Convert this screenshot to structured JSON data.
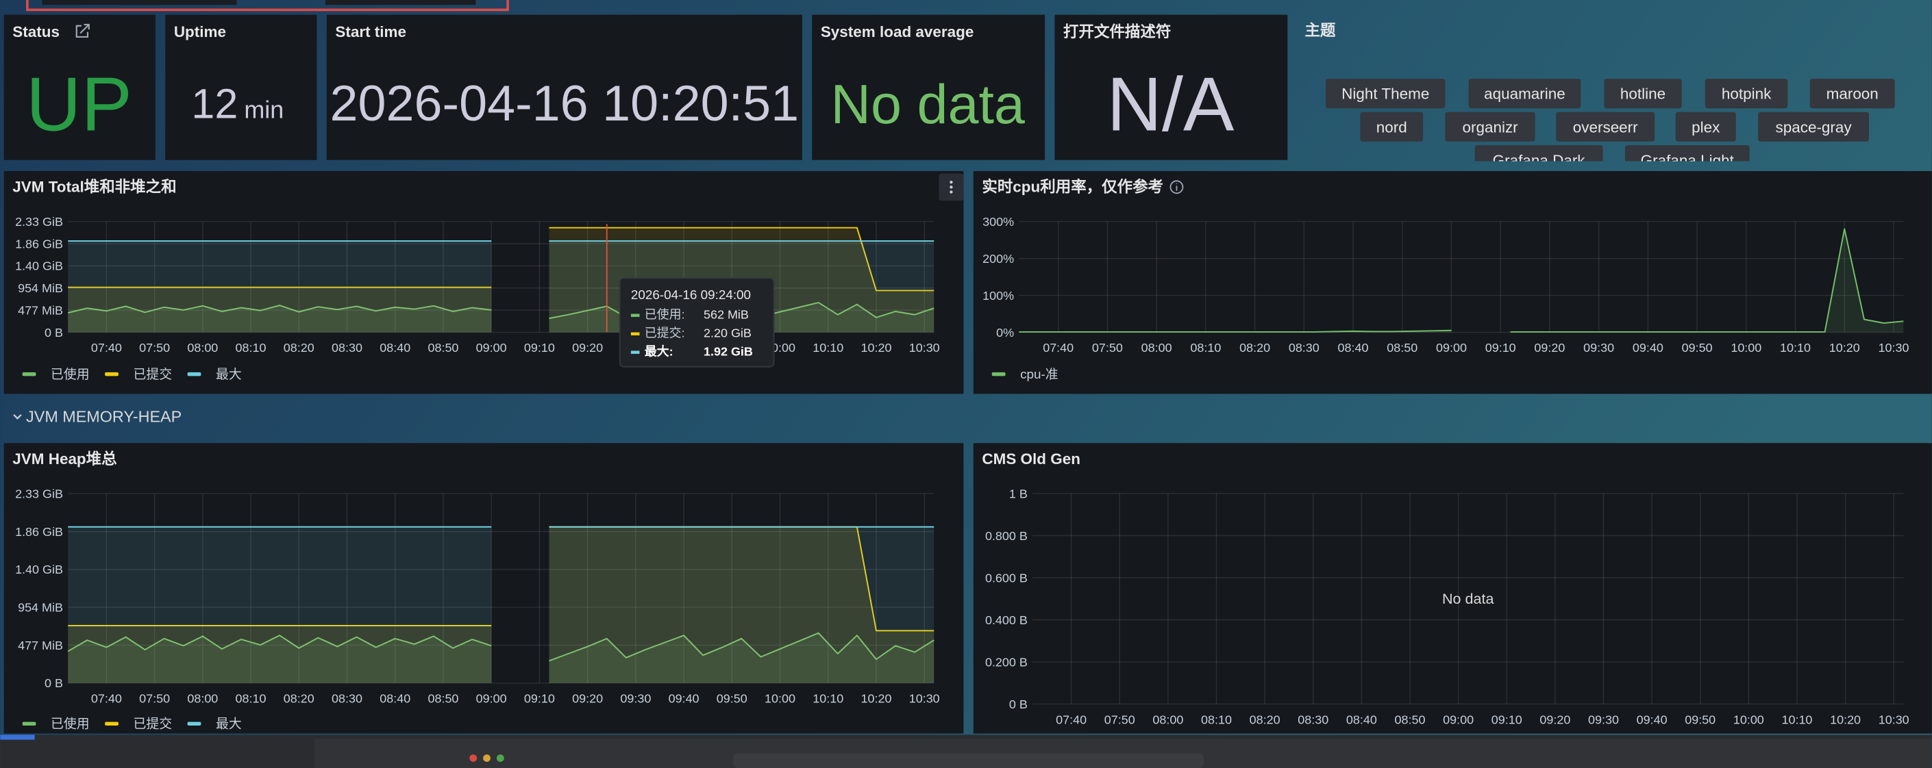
{
  "stats": [
    {
      "title": "Status",
      "value": "UP"
    },
    {
      "title": "Uptime",
      "value": 12,
      "unit": "min"
    },
    {
      "title": "Start time",
      "value": "2026-04-16 10:20:51"
    },
    {
      "title": "System load average",
      "value": "No data"
    },
    {
      "title": "打开文件描述符",
      "value": "N/A"
    }
  ],
  "theme_panel": {
    "title": "主题",
    "options": [
      "Night Theme",
      "aquamarine",
      "hotline",
      "hotpink",
      "maroon",
      "nord",
      "organizr",
      "overseerr",
      "plex",
      "space-gray",
      "Grafana Dark",
      "Grafana Light"
    ]
  },
  "row_title": "JVM MEMORY-HEAP",
  "chart_data": [
    {
      "type": "line",
      "title": "JVM Total堆和非堆之和",
      "x": [
        "07:32",
        "07:36",
        "07:40",
        "07:44",
        "07:48",
        "07:52",
        "07:56",
        "08:00",
        "08:04",
        "08:08",
        "08:12",
        "08:16",
        "08:20",
        "08:24",
        "08:28",
        "08:32",
        "08:36",
        "08:40",
        "08:44",
        "08:48",
        "08:52",
        "08:56",
        "09:00",
        "09:04",
        "09:08",
        "09:12",
        "09:16",
        "09:20",
        "09:24",
        "09:28",
        "09:32",
        "09:36",
        "09:40",
        "09:44",
        "09:48",
        "09:52",
        "09:56",
        "10:00",
        "10:04",
        "10:08",
        "10:12",
        "10:16",
        "10:20",
        "10:24",
        "10:28",
        "10:32"
      ],
      "xlim": [
        "07:32",
        "10:32"
      ],
      "xticks": [
        "07:40",
        "07:50",
        "08:00",
        "08:10",
        "08:20",
        "08:30",
        "08:40",
        "08:50",
        "09:00",
        "09:10",
        "09:20",
        "09:30",
        "09:40",
        "09:50",
        "10:00",
        "10:10",
        "10:20",
        "10:30"
      ],
      "ylim": [
        0,
        2386
      ],
      "yticks": [
        {
          "value": 0,
          "label": "0 B"
        },
        {
          "value": 477,
          "label": "477 MiB"
        },
        {
          "value": 954,
          "label": "954 MiB"
        },
        {
          "value": 1431,
          "label": "1.40 GiB"
        },
        {
          "value": 1907,
          "label": "1.86 GiB"
        },
        {
          "value": 2386,
          "label": "2.33 GiB"
        }
      ],
      "grid": true,
      "series": [
        {
          "name": "已使用",
          "color": "#73bf69",
          "values": [
            420,
            520,
            460,
            560,
            430,
            540,
            480,
            570,
            450,
            530,
            470,
            580,
            440,
            550,
            490,
            560,
            460,
            540,
            500,
            570,
            450,
            530,
            480,
            null,
            null,
            300,
            380,
            470,
            562,
            330,
            420,
            520,
            610,
            360,
            460,
            560,
            340,
            440,
            540,
            640,
            380,
            600,
            320,
            450,
            380,
            520
          ]
        },
        {
          "name": "已提交",
          "color": "#f2cc0c",
          "values": [
            970,
            970,
            970,
            970,
            970,
            970,
            970,
            970,
            970,
            970,
            970,
            970,
            970,
            970,
            970,
            970,
            970,
            970,
            970,
            970,
            970,
            970,
            970,
            null,
            null,
            2253,
            2253,
            2253,
            2253,
            2253,
            2253,
            2253,
            2253,
            2253,
            2253,
            2253,
            2253,
            2253,
            2253,
            2253,
            2253,
            2253,
            900,
            900,
            900,
            900
          ]
        },
        {
          "name": "最大",
          "color": "#6ed0e0",
          "values": [
            1966,
            1966,
            1966,
            1966,
            1966,
            1966,
            1966,
            1966,
            1966,
            1966,
            1966,
            1966,
            1966,
            1966,
            1966,
            1966,
            1966,
            1966,
            1966,
            1966,
            1966,
            1966,
            1966,
            null,
            null,
            1966,
            1966,
            1966,
            1966,
            1966,
            1966,
            1966,
            1966,
            1966,
            1966,
            1966,
            1966,
            1966,
            1966,
            1966,
            1966,
            1966,
            1966,
            1966,
            1966,
            1966
          ]
        }
      ],
      "tooltip": {
        "time": "2026-04-16 09:24:00",
        "rows": [
          {
            "name": "已使用:",
            "value": "562 MiB"
          },
          {
            "name": "已提交:",
            "value": "2.20 GiB"
          },
          {
            "name": "最大:",
            "value": "1.92 GiB"
          }
        ]
      }
    },
    {
      "type": "line",
      "title": "实时cpu利用率，仅作参考",
      "x": [
        "07:32",
        "07:36",
        "07:40",
        "07:44",
        "07:48",
        "07:52",
        "07:56",
        "08:00",
        "08:04",
        "08:08",
        "08:12",
        "08:16",
        "08:20",
        "08:24",
        "08:28",
        "08:32",
        "08:36",
        "08:40",
        "08:44",
        "08:48",
        "08:52",
        "08:56",
        "09:00",
        "09:04",
        "09:08",
        "09:12",
        "09:16",
        "09:20",
        "09:24",
        "09:28",
        "09:32",
        "09:36",
        "09:40",
        "09:44",
        "09:48",
        "09:52",
        "09:56",
        "10:00",
        "10:04",
        "10:08",
        "10:12",
        "10:16",
        "10:20",
        "10:24",
        "10:28",
        "10:32"
      ],
      "xlim": [
        "07:32",
        "10:32"
      ],
      "xticks": [
        "07:40",
        "07:50",
        "08:00",
        "08:10",
        "08:20",
        "08:30",
        "08:40",
        "08:50",
        "09:00",
        "09:10",
        "09:20",
        "09:30",
        "09:40",
        "09:50",
        "10:00",
        "10:10",
        "10:20",
        "10:30"
      ],
      "ylim": [
        0,
        300
      ],
      "yticks": [
        {
          "value": 0,
          "label": "0%"
        },
        {
          "value": 100,
          "label": "100%"
        },
        {
          "value": 200,
          "label": "200%"
        },
        {
          "value": 300,
          "label": "300%"
        }
      ],
      "grid": true,
      "series": [
        {
          "name": "cpu-准",
          "color": "#73bf69",
          "values": [
            1,
            1,
            1,
            1,
            1,
            1,
            1,
            1,
            1,
            1,
            1,
            1,
            1,
            1,
            1,
            1,
            2,
            3,
            2,
            2,
            3,
            4,
            5,
            null,
            null,
            1,
            1,
            1,
            1,
            1,
            1,
            1,
            1,
            1,
            1,
            1,
            1,
            1,
            1,
            1,
            1,
            1,
            280,
            35,
            25,
            30
          ]
        }
      ]
    },
    {
      "type": "line",
      "title": "JVM Heap堆总",
      "x": [
        "07:32",
        "07:36",
        "07:40",
        "07:44",
        "07:48",
        "07:52",
        "07:56",
        "08:00",
        "08:04",
        "08:08",
        "08:12",
        "08:16",
        "08:20",
        "08:24",
        "08:28",
        "08:32",
        "08:36",
        "08:40",
        "08:44",
        "08:48",
        "08:52",
        "08:56",
        "09:00",
        "09:04",
        "09:08",
        "09:12",
        "09:16",
        "09:20",
        "09:24",
        "09:28",
        "09:32",
        "09:36",
        "09:40",
        "09:44",
        "09:48",
        "09:52",
        "09:56",
        "10:00",
        "10:04",
        "10:08",
        "10:12",
        "10:16",
        "10:20",
        "10:24",
        "10:28",
        "10:32"
      ],
      "xlim": [
        "07:32",
        "10:32"
      ],
      "xticks": [
        "07:40",
        "07:50",
        "08:00",
        "08:10",
        "08:20",
        "08:30",
        "08:40",
        "08:50",
        "09:00",
        "09:10",
        "09:20",
        "09:30",
        "09:40",
        "09:50",
        "10:00",
        "10:10",
        "10:20",
        "10:30"
      ],
      "ylim": [
        0,
        2386
      ],
      "yticks": [
        {
          "value": 0,
          "label": "0 B"
        },
        {
          "value": 477,
          "label": "477 MiB"
        },
        {
          "value": 954,
          "label": "954 MiB"
        },
        {
          "value": 1431,
          "label": "1.40 GiB"
        },
        {
          "value": 1907,
          "label": "1.86 GiB"
        },
        {
          "value": 2386,
          "label": "2.33 GiB"
        }
      ],
      "grid": true,
      "series": [
        {
          "name": "已使用",
          "color": "#73bf69",
          "values": [
            400,
            540,
            450,
            580,
            420,
            560,
            470,
            590,
            430,
            550,
            480,
            600,
            440,
            570,
            460,
            580,
            450,
            560,
            490,
            590,
            440,
            550,
            470,
            null,
            null,
            280,
            370,
            460,
            560,
            320,
            420,
            510,
            600,
            350,
            450,
            560,
            330,
            430,
            530,
            630,
            370,
            600,
            300,
            470,
            390,
            540
          ]
        },
        {
          "name": "已提交",
          "color": "#f2cc0c",
          "values": [
            723,
            723,
            723,
            723,
            723,
            723,
            723,
            723,
            723,
            723,
            723,
            723,
            723,
            723,
            723,
            723,
            723,
            723,
            723,
            723,
            723,
            723,
            723,
            null,
            null,
            1966,
            1966,
            1966,
            1966,
            1966,
            1966,
            1966,
            1966,
            1966,
            1966,
            1966,
            1966,
            1966,
            1966,
            1966,
            1966,
            1966,
            660,
            660,
            660,
            660
          ]
        },
        {
          "name": "最大",
          "color": "#6ed0e0",
          "values": [
            1966,
            1966,
            1966,
            1966,
            1966,
            1966,
            1966,
            1966,
            1966,
            1966,
            1966,
            1966,
            1966,
            1966,
            1966,
            1966,
            1966,
            1966,
            1966,
            1966,
            1966,
            1966,
            1966,
            null,
            null,
            1966,
            1966,
            1966,
            1966,
            1966,
            1966,
            1966,
            1966,
            1966,
            1966,
            1966,
            1966,
            1966,
            1966,
            1966,
            1966,
            1966,
            1966,
            1966,
            1966,
            1966
          ]
        }
      ]
    },
    {
      "type": "line",
      "title": "CMS Old Gen",
      "no_data_text": "No data",
      "xlim": [
        "07:32",
        "10:32"
      ],
      "xticks": [
        "07:40",
        "07:50",
        "08:00",
        "08:10",
        "08:20",
        "08:30",
        "08:40",
        "08:50",
        "09:00",
        "09:10",
        "09:20",
        "09:30",
        "09:40",
        "09:50",
        "10:00",
        "10:10",
        "10:20",
        "10:30"
      ],
      "ylim": [
        0,
        1
      ],
      "yticks": [
        {
          "value": 0,
          "label": "0 B"
        },
        {
          "value": 0.2,
          "label": "0.200 B"
        },
        {
          "value": 0.4,
          "label": "0.400 B"
        },
        {
          "value": 0.6,
          "label": "0.600 B"
        },
        {
          "value": 0.8,
          "label": "0.800 B"
        },
        {
          "value": 1,
          "label": "1 B"
        }
      ],
      "grid": true,
      "series": []
    }
  ]
}
